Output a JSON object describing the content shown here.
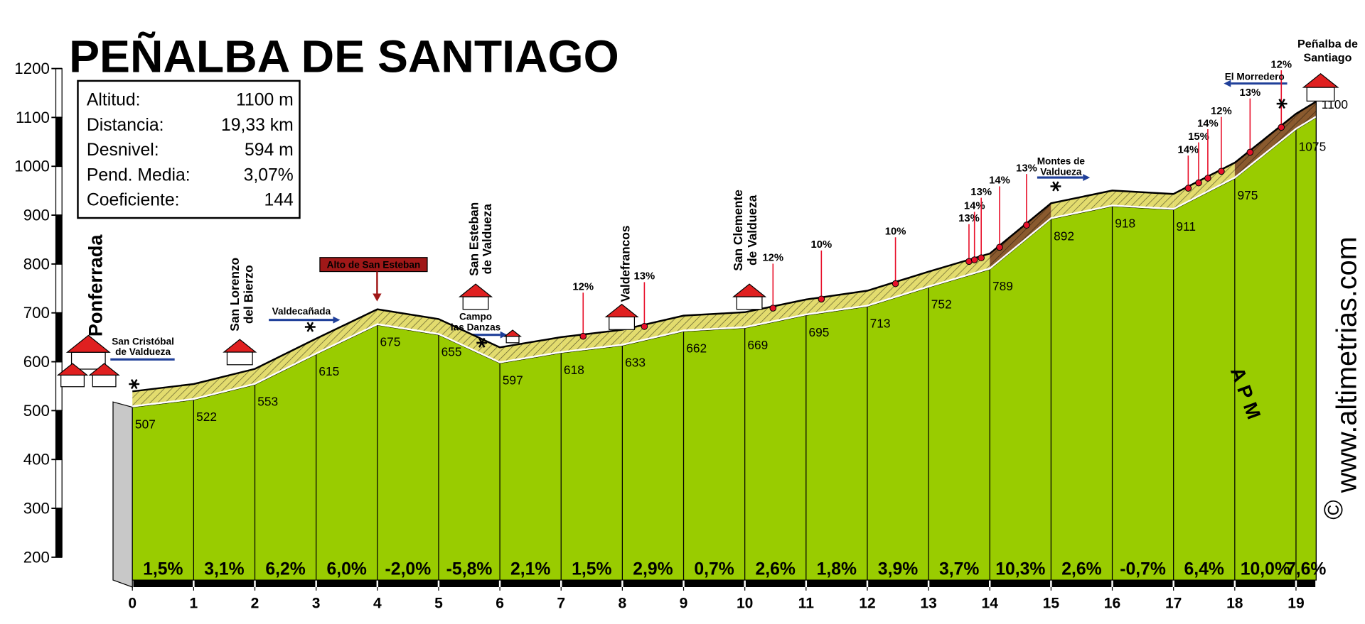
{
  "chart_data": {
    "type": "profile",
    "title": "PEÑALBA DE SANTIAGO",
    "info": [
      {
        "label": "Altitud:",
        "value": "1100 m"
      },
      {
        "label": "Distancia:",
        "value": "19,33 km"
      },
      {
        "label": "Desnivel:",
        "value": "594 m"
      },
      {
        "label": "Pend. Media:",
        "value": "3,07%"
      },
      {
        "label": "Coeficiente:",
        "value": "144"
      }
    ],
    "x": [
      0,
      1,
      2,
      3,
      4,
      5,
      6,
      7,
      8,
      9,
      10,
      11,
      12,
      13,
      14,
      15,
      16,
      17,
      18,
      19,
      19.33
    ],
    "values": [
      507,
      522,
      553,
      615,
      675,
      655,
      597,
      618,
      633,
      662,
      669,
      695,
      713,
      752,
      789,
      892,
      918,
      911,
      975,
      1075,
      1100
    ],
    "gradients": {
      "values": [
        1.5,
        3.1,
        6.2,
        6.0,
        -2.0,
        -5.8,
        2.1,
        1.5,
        2.9,
        0.7,
        2.6,
        1.8,
        3.9,
        3.7,
        10.3,
        2.6,
        -0.7,
        6.4,
        10.0,
        7.6
      ],
      "value_labels": [
        "1,5%",
        "3,1%",
        "6,2%",
        "6,0%",
        "-2,0%",
        "-5,8%",
        "2,1%",
        "1,5%",
        "2,9%",
        "0,7%",
        "2,6%",
        "1,8%",
        "3,9%",
        "3,7%",
        "10,3%",
        "2,6%",
        "-0,7%",
        "6,4%",
        "10,0%",
        "7,6%"
      ]
    },
    "peak_gradients": {
      "x": [
        7.36,
        8.36,
        10.46,
        11.25,
        12.46,
        13.66,
        13.75,
        13.86,
        14.16,
        14.6,
        17.24,
        17.41,
        17.56,
        17.78,
        18.25,
        18.76
      ],
      "values": [
        12,
        13,
        12,
        10,
        10,
        13,
        14,
        13,
        14,
        13,
        14,
        15,
        14,
        12,
        13,
        12
      ],
      "value_labels": [
        "12%",
        "13%",
        "12%",
        "10%",
        "10%",
        "13%",
        "14%",
        "13%",
        "14%",
        "13%",
        "14%",
        "15%",
        "14%",
        "12%",
        "13%",
        "12%"
      ]
    },
    "places": [
      {
        "lines": [
          "Ponferrada"
        ]
      },
      {
        "lines": [
          "San Cristóbal",
          "de Valdueza"
        ]
      },
      {
        "lines": [
          "San Lorenzo",
          "del Bierzo"
        ]
      },
      {
        "lines": [
          "Valdecañada"
        ]
      },
      {
        "lines": [
          "Alto de San Esteban"
        ]
      },
      {
        "lines": [
          "San Esteban",
          "de Valdueza"
        ]
      },
      {
        "lines": [
          "Campo",
          "las Danzas"
        ]
      },
      {
        "lines": [
          "Valdefrancos"
        ]
      },
      {
        "lines": [
          "San Clemente",
          "de Valdueza"
        ]
      },
      {
        "lines": [
          "Montes de",
          "Valdueza"
        ]
      },
      {
        "lines": [
          "El Morredero"
        ]
      },
      {
        "lines": [
          "Peñalba de",
          "Santiago"
        ]
      }
    ],
    "website": "www.altimetrias.com",
    "copyright": "©",
    "logo": "APM",
    "xlim": [
      0,
      19.33
    ],
    "xticks": [
      0,
      1,
      2,
      3,
      4,
      5,
      6,
      7,
      8,
      9,
      10,
      11,
      12,
      13,
      14,
      15,
      16,
      17,
      18,
      19
    ],
    "ylim": [
      200,
      1200
    ],
    "yticks": [
      200,
      300,
      400,
      500,
      600,
      700,
      800,
      900,
      1000,
      1100,
      1200
    ],
    "area_color": "#99cc00",
    "ribbon_colors": [
      "#e3dc6e",
      "#e3dc6e",
      "#e3dc6e",
      "#e3dc6e",
      "#e3dc6e",
      "#e3dc6e",
      "#e3dc6e",
      "#e3dc6e",
      "#e3dc6e",
      "#e3dc6e",
      "#e3dc6e",
      "#e3dc6e",
      "#e3dc6e",
      "#e3dc6e",
      "#8a5a2e",
      "#e3dc6e",
      "#e3dc6e",
      "#e3dc6e",
      "#8a5a2e",
      "#8a5a2e"
    ],
    "marker_color": "#e8102a"
  }
}
